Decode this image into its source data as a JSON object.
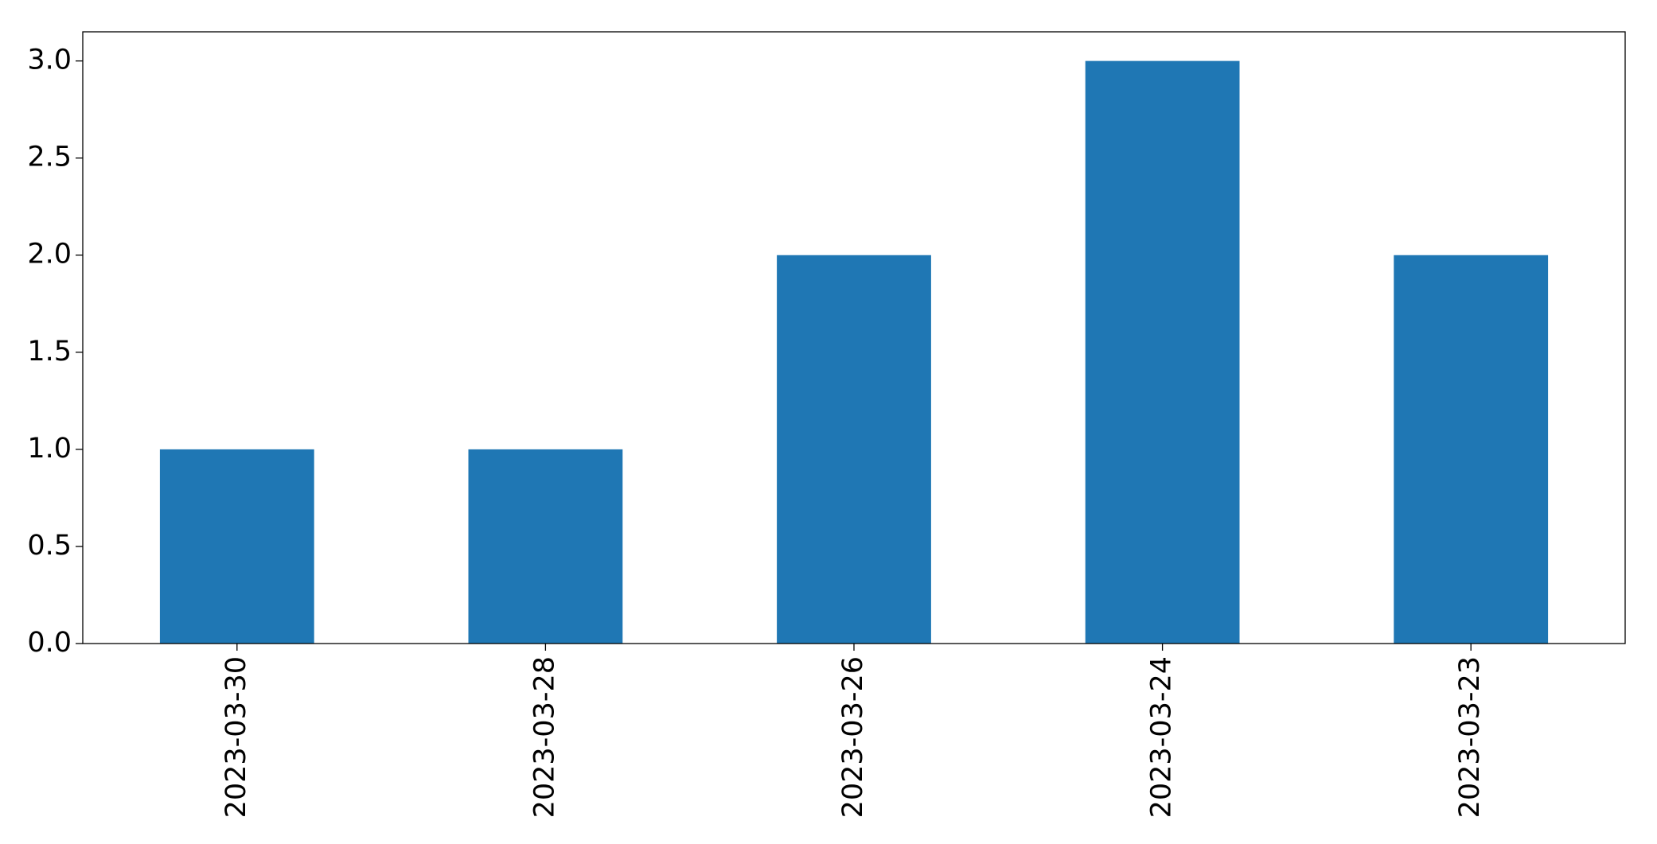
{
  "chart_data": {
    "type": "bar",
    "categories": [
      "2023-03-30",
      "2023-03-28",
      "2023-03-26",
      "2023-03-24",
      "2023-03-23"
    ],
    "values": [
      1,
      1,
      2,
      3,
      2
    ],
    "color": "#1f77b4",
    "ylim": [
      0,
      3.15
    ],
    "yticks": [
      {
        "value": 0,
        "label": "0.0"
      },
      0.5,
      {
        "value": 1,
        "label": "1.0"
      },
      1.5,
      {
        "value": 2,
        "label": "2.0"
      },
      2.5,
      {
        "value": 3,
        "label": "3.0"
      }
    ],
    "grid": false
  }
}
